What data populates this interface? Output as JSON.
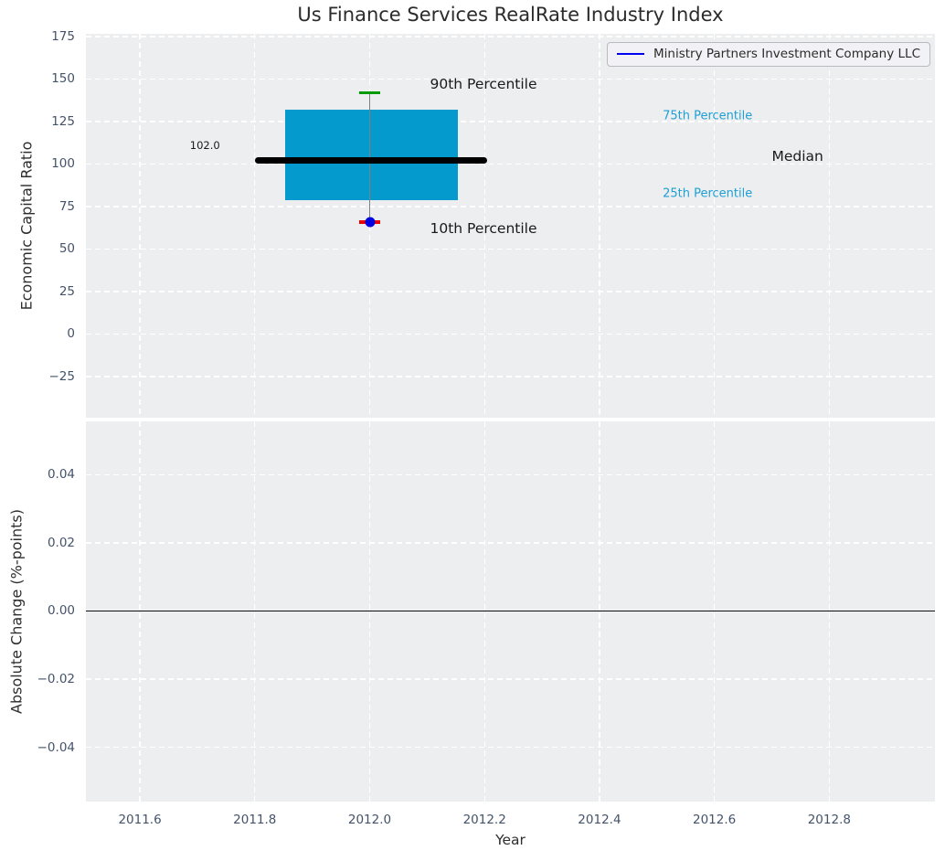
{
  "title": "Us Finance Services RealRate Industry Index",
  "legend": {
    "label": "Ministry Partners Investment Company LLC",
    "line_color": "#0202f2"
  },
  "colors": {
    "axes_bg": "#eceef0",
    "grid": "#ffffff",
    "box_fill": "#049acd",
    "median_line": "#000000",
    "whisker": "#818181",
    "cap_90th": "#009b00",
    "cap_10th": "#ed0000",
    "company_dot": "#0202e0",
    "tick_text": "#44536a",
    "cyan_text": "#1f9fd4",
    "annotation_text": "#1a1a1a",
    "zero_line": "#111111"
  },
  "x_axis": {
    "label": "Year",
    "xlim": [
      2011.506,
      2012.984
    ],
    "tick_values": [
      2011.6,
      2011.8,
      2012.0,
      2012.2,
      2012.4,
      2012.6,
      2012.8
    ],
    "tick_labels": [
      "2011.6",
      "2011.8",
      "2012.0",
      "2012.2",
      "2012.4",
      "2012.6",
      "2012.8"
    ]
  },
  "chart_data": [
    {
      "type": "boxplot",
      "title": "Us Finance Services RealRate Industry Index",
      "ylabel": "Economic Capital Ratio",
      "ylim": [
        -49.2,
        176.6
      ],
      "ytick_values": [
        175,
        150,
        125,
        100,
        75,
        50,
        25,
        0,
        -25
      ],
      "ytick_labels": [
        "175",
        "150",
        "125",
        "100",
        "75",
        "50",
        "25",
        "0",
        "−25"
      ],
      "grid": true,
      "legend_position": "upper right",
      "series": [
        {
          "name": "Ministry Partners Investment Company LLC",
          "x": 2012.0,
          "company_value": 66,
          "percentiles": {
            "p10": 66,
            "p25": 78.5,
            "median": 102,
            "p75": 132,
            "p90": 142
          },
          "median_value_label": "102.0"
        }
      ],
      "box_x_range": [
        2011.853,
        2012.154
      ],
      "median_x_range": [
        2011.8,
        2012.205
      ],
      "cap_half_width": 0.018,
      "annotations": [
        {
          "text": "90th Percentile",
          "x": 2012.105,
          "y": 147.0,
          "size": 15.5,
          "color": "#1a1a1a"
        },
        {
          "text": "10th Percentile",
          "x": 2012.105,
          "y": 62.0,
          "size": 15.5,
          "color": "#1a1a1a"
        },
        {
          "text": "75th Percentile",
          "x": 2012.51,
          "y": 128.2,
          "size": 13.0,
          "color": "#1f9fd4"
        },
        {
          "text": "25th Percentile",
          "x": 2012.51,
          "y": 82.3,
          "size": 13.0,
          "color": "#1f9fd4"
        },
        {
          "text": "Median",
          "x": 2012.7,
          "y": 104.3,
          "size": 15.5,
          "color": "#1a1a1a"
        },
        {
          "text": "102.0",
          "x": 2011.687,
          "y": 111.0,
          "size": 11.5,
          "color": "#1a1a1a"
        }
      ]
    },
    {
      "type": "line",
      "ylabel": "Absolute Change (%-points)",
      "ylim": [
        -0.0559,
        0.0556
      ],
      "ytick_values": [
        0.04,
        0.02,
        0.0,
        -0.02,
        -0.04
      ],
      "ytick_labels": [
        "0.04",
        "0.02",
        "0.00",
        "−0.02",
        "−0.04"
      ],
      "grid": true,
      "zero_line": 0.0,
      "series": []
    }
  ]
}
